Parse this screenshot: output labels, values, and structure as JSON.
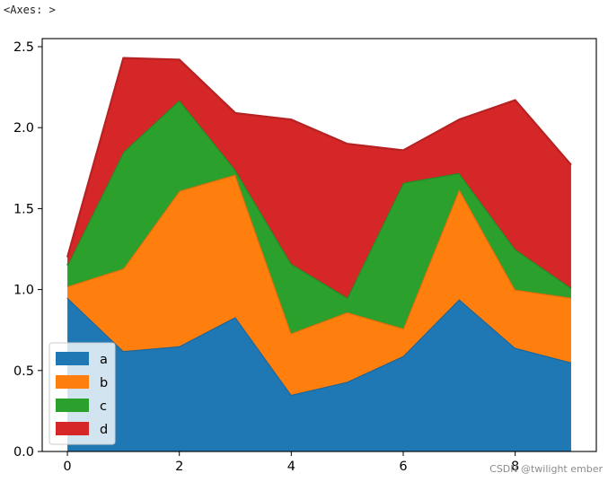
{
  "output_text": "<Axes: >",
  "watermark": "CSDN @twilight ember",
  "chart_data": {
    "type": "area",
    "stacked": true,
    "x": [
      0,
      1,
      2,
      3,
      4,
      5,
      6,
      7,
      8,
      9
    ],
    "xlim": [
      -0.45,
      9.45
    ],
    "ylim": [
      0,
      2.55
    ],
    "xticks": [
      0,
      2,
      4,
      6,
      8
    ],
    "yticks": [
      0.0,
      0.5,
      1.0,
      1.5,
      2.0,
      2.5
    ],
    "xtick_labels": [
      "0",
      "2",
      "4",
      "6",
      "8"
    ],
    "ytick_labels": [
      "0.0",
      "0.5",
      "1.0",
      "1.5",
      "2.0",
      "2.5"
    ],
    "title": "",
    "xlabel": "",
    "ylabel": "",
    "grid": false,
    "legend_position": "lower-left",
    "series": [
      {
        "name": "a",
        "color": "#1f77b4",
        "values": [
          0.95,
          0.62,
          0.65,
          0.83,
          0.35,
          0.43,
          0.59,
          0.94,
          0.64,
          0.55
        ]
      },
      {
        "name": "b",
        "color": "#ff7f0e",
        "values": [
          0.07,
          0.51,
          0.96,
          0.88,
          0.38,
          0.43,
          0.17,
          0.68,
          0.36,
          0.4
        ]
      },
      {
        "name": "c",
        "color": "#2ca02c",
        "values": [
          0.13,
          0.72,
          0.56,
          0.03,
          0.43,
          0.09,
          0.9,
          0.1,
          0.25,
          0.06
        ]
      },
      {
        "name": "d",
        "color": "#d62728",
        "values": [
          0.05,
          0.58,
          0.25,
          0.35,
          0.89,
          0.95,
          0.2,
          0.33,
          0.92,
          0.76
        ]
      }
    ]
  }
}
